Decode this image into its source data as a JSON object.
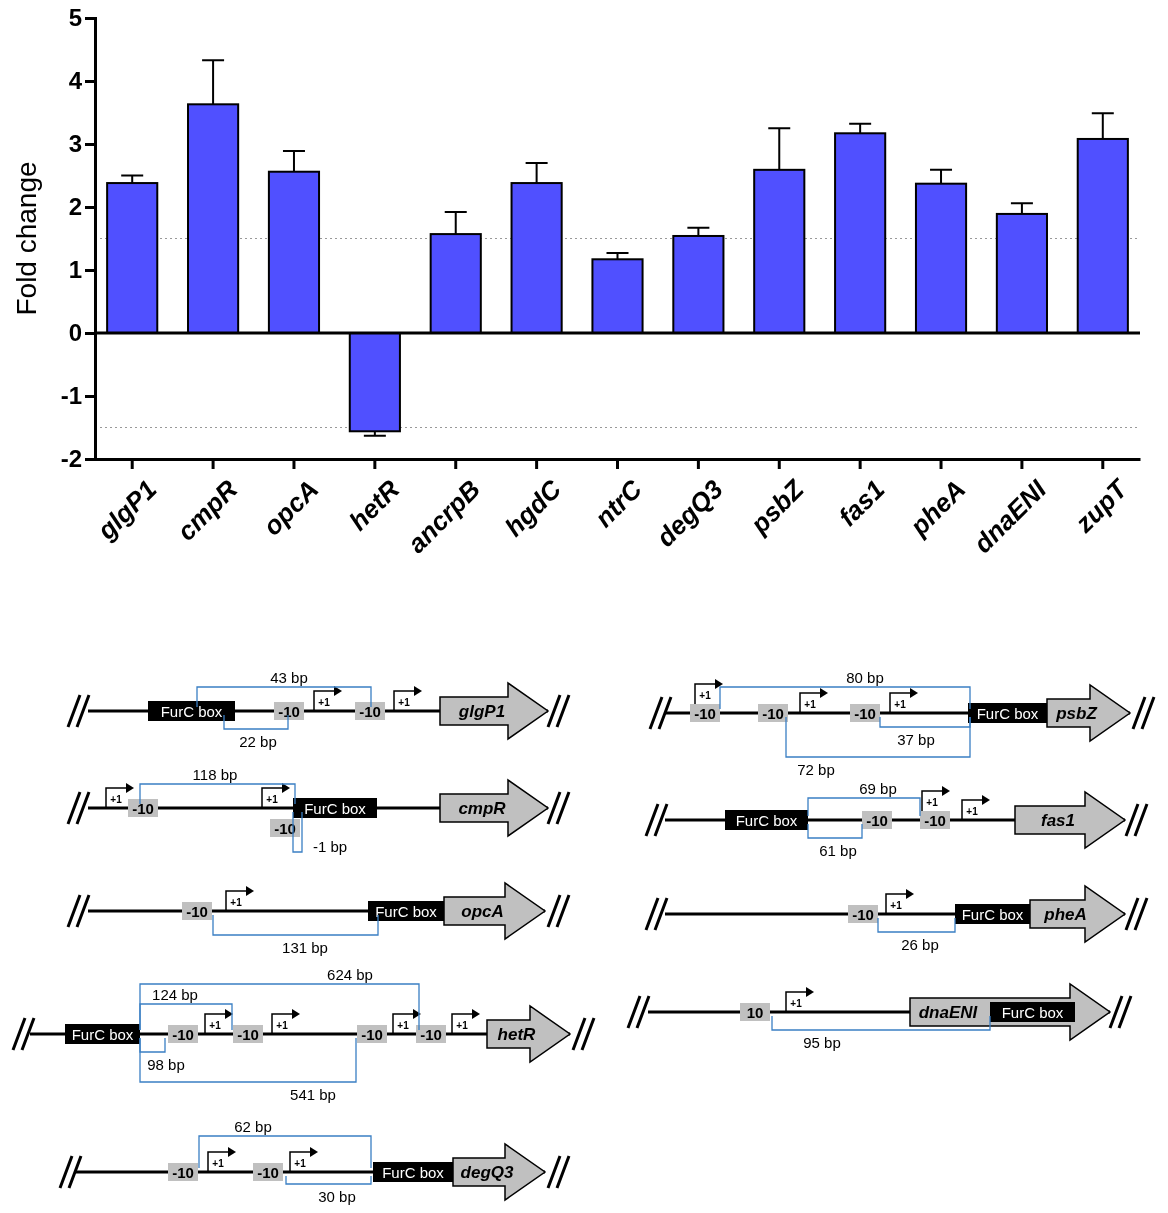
{
  "chart_data": [
    {
      "type": "bar",
      "ylabel": "Fold change",
      "categories": [
        "glgP1",
        "cmpR",
        "opcA",
        "hetR",
        "ancrpB",
        "hgdC",
        "ntrC",
        "degQ3",
        "psbZ",
        "fas1",
        "pheA",
        "dnaENI",
        "zupT"
      ],
      "values": [
        2.38,
        3.63,
        2.56,
        -1.56,
        1.57,
        2.38,
        1.17,
        1.54,
        2.59,
        3.17,
        2.37,
        1.89,
        3.08
      ],
      "errors": [
        [
          2.38,
          2.5
        ],
        [
          3.63,
          4.33
        ],
        [
          2.56,
          2.89
        ],
        [
          -1.63,
          -1.56
        ],
        [
          1.57,
          1.92
        ],
        [
          2.38,
          2.7
        ],
        [
          1.17,
          1.27
        ],
        [
          1.54,
          1.67
        ],
        [
          2.59,
          3.25
        ],
        [
          3.17,
          3.32
        ],
        [
          2.37,
          2.59
        ],
        [
          1.89,
          2.06
        ],
        [
          3.08,
          3.49
        ]
      ],
      "color": "#5050ff",
      "ylim": [
        -2,
        5
      ],
      "yticks": [
        -2,
        -1,
        0,
        1,
        2,
        3,
        4,
        5
      ],
      "ref_lines": [
        {
          "axis": "y",
          "value": 1.5,
          "color": "#999999",
          "line_style": "dotted"
        },
        {
          "axis": "y",
          "value": -1.5,
          "color": "#999999",
          "line_style": "dotted"
        }
      ]
    },
    {
      "type": "other",
      "annotations": [
        "glgP1",
        "FurC box",
        "-10",
        "-10",
        "+1",
        "+1",
        "43 bp",
        "22 bp",
        "cmpR",
        "+1",
        "-10",
        "+1",
        "FurC box",
        "-10",
        "118 bp",
        "-1 bp",
        "opcA",
        "-10",
        "+1",
        "FurC box",
        "131 bp",
        "hetR",
        "FurC box",
        "-10",
        "+1",
        "-10",
        "+1",
        "-10",
        "+1",
        "-10",
        "+1",
        "124 bp",
        "624 bp",
        "98 bp",
        "541 bp",
        "degQ3",
        "-10",
        "+1",
        "-10",
        "+1",
        "FurC box",
        "62 bp",
        "30 bp",
        "psbZ",
        "+1",
        "-10",
        "-10",
        "+1",
        "-10",
        "+1",
        "FurC box",
        "80 bp",
        "37 bp",
        "72 bp",
        "fas1",
        "FurC box",
        "-10",
        "-10",
        "+1",
        "+1",
        "69 bp",
        "61 bp",
        "pheA",
        "-10",
        "+1",
        "FurC box",
        "26 bp",
        "dnaENI",
        "10",
        "+1",
        "FurC box",
        "95 bp"
      ]
    }
  ]
}
